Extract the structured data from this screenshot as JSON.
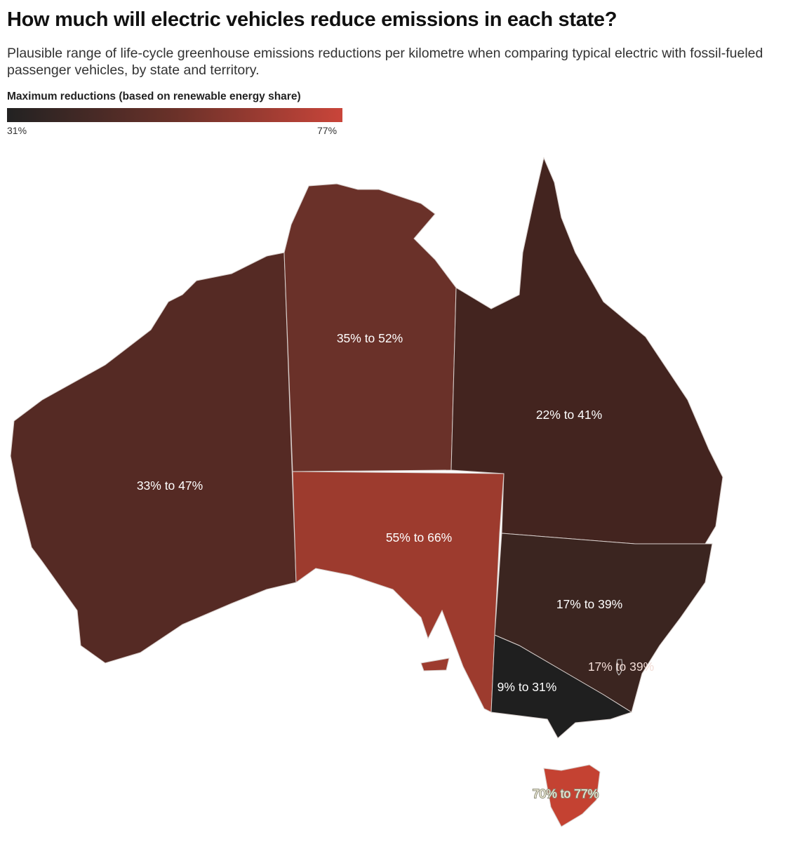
{
  "title": "How much will electric vehicles reduce emissions in each state?",
  "subtitle": "Plausible range of life-cycle greenhouse emissions reductions per kilometre when comparing typical electric with fossil-fueled passenger vehicles, by state and territory.",
  "legend": {
    "title": "Maximum reductions (based on renewable energy share)",
    "min_label": "31%",
    "max_label": "77%",
    "min_color": "#222222",
    "max_color": "#c9453a"
  },
  "regions": {
    "wa": {
      "label": "33% to 47%",
      "color": "#552a24"
    },
    "nt": {
      "label": "35% to 52%",
      "color": "#6a3129"
    },
    "qld": {
      "label": "22% to 41%",
      "color": "#43241f"
    },
    "sa": {
      "label": "55% to 66%",
      "color": "#9d3b2e"
    },
    "nsw": {
      "label": "17% to 39%",
      "color": "#3b2520"
    },
    "act": {
      "label": "17% to 39%",
      "color": "#3b2520"
    },
    "vic": {
      "label": "9% to 31%",
      "color": "#1f1f1f"
    },
    "tas": {
      "label": "70% to 77%",
      "color": "#c44232"
    }
  }
}
